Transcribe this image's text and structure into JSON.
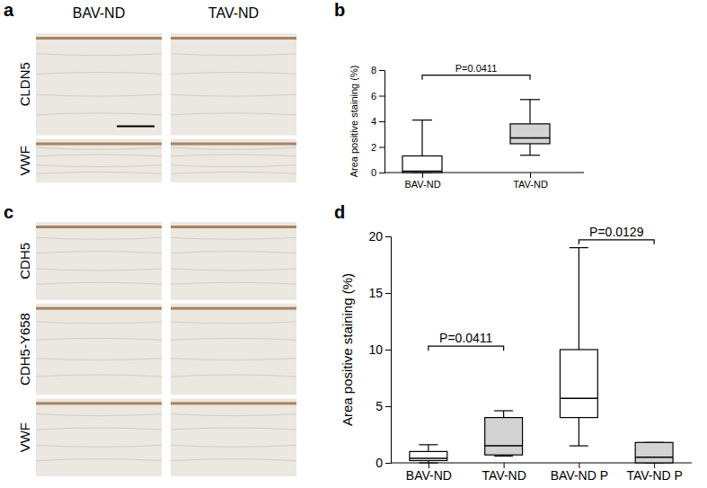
{
  "chart_data": [
    {
      "type": "box",
      "title": "b",
      "y_label": "Area positive staining (%)",
      "categories": [
        "BAV-ND",
        "TAV-ND"
      ],
      "min": [
        0,
        1.35
      ],
      "q1": [
        0,
        2.25
      ],
      "median": [
        0.1,
        2.7
      ],
      "q3": [
        1.3,
        3.8
      ],
      "max": [
        4.1,
        5.7
      ],
      "colors": [
        "#ffffff",
        "#d3d3d3"
      ],
      "ylim": [
        0,
        8
      ],
      "yticks": [
        0,
        2,
        4,
        6,
        8
      ],
      "annotations": [
        {
          "text": "P=0.0411",
          "from": 0,
          "to": 1,
          "y": 7.6
        }
      ]
    },
    {
      "type": "box",
      "title": "d",
      "y_label": "Area positive staining (%)",
      "categories": [
        "BAV-ND",
        "TAV-ND",
        "BAV-ND P",
        "TAV-ND P"
      ],
      "min": [
        0,
        0.6,
        1.5,
        0
      ],
      "q1": [
        0.2,
        0.7,
        4.0,
        0
      ],
      "median": [
        0.4,
        1.5,
        5.7,
        0.5
      ],
      "q3": [
        1.0,
        4.0,
        10.0,
        1.8
      ],
      "max": [
        1.6,
        4.6,
        19.0,
        1.8
      ],
      "colors": [
        "#ffffff",
        "#d3d3d3",
        "#ffffff",
        "#d3d3d3"
      ],
      "ylim": [
        0,
        20
      ],
      "yticks": [
        0,
        5,
        10,
        15,
        20
      ],
      "annotations": [
        {
          "text": "P=0.0411",
          "from": 0,
          "to": 1,
          "y": 10.3
        },
        {
          "text": "P=0.0129",
          "from": 2,
          "to": 3,
          "y": 19.7
        }
      ]
    }
  ],
  "image_panels": [
    {
      "label": "a",
      "columns": [
        "BAV-ND",
        "TAV-ND"
      ],
      "rows": [
        "CLDN5",
        "VWF"
      ]
    },
    {
      "label": "c",
      "rows": [
        "CDH5",
        "CDH5-Y658",
        "VWF"
      ]
    }
  ]
}
